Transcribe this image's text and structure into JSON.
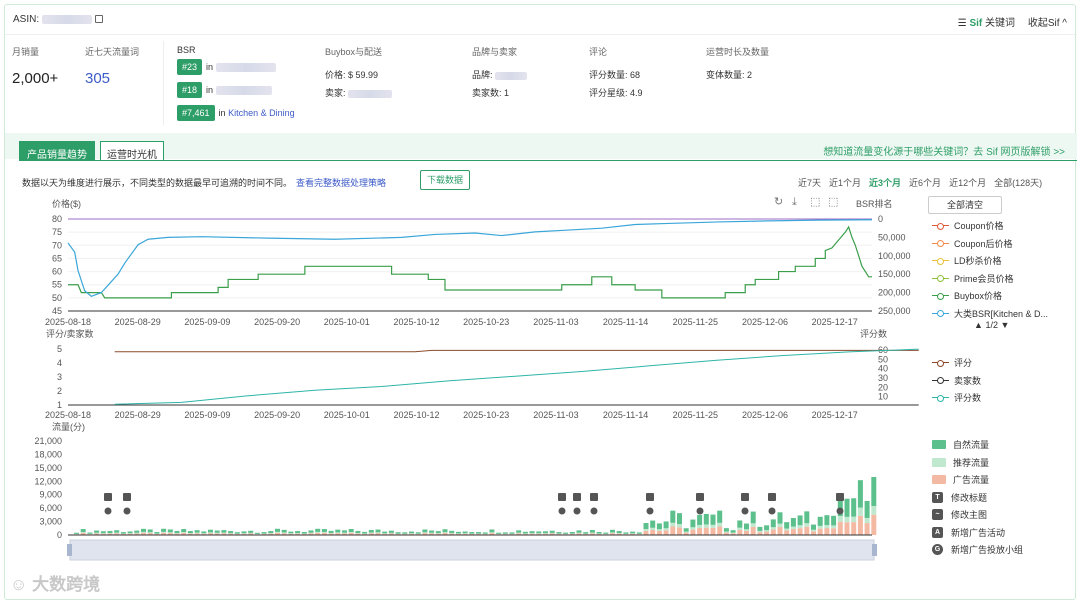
{
  "header": {
    "asin_label": "ASIN:",
    "keywords_label": "关键词",
    "sif_label": "Sif",
    "collapse_label": "收起Sif ^"
  },
  "stats": {
    "monthly_sales_label": "月销量",
    "monthly_sales": "2,000+",
    "traffic_words_label": "近七天流量词",
    "traffic_words": "305"
  },
  "bsr": {
    "label": "BSR",
    "in": "in",
    "ranks": [
      {
        "rank": "#23",
        "category": ""
      },
      {
        "rank": "#18",
        "category": ""
      },
      {
        "rank": "#7,461",
        "category": "Kitchen & Dining"
      }
    ]
  },
  "buybox": {
    "label": "Buybox与配送",
    "price_label": "价格:",
    "price": "$ 59.99",
    "seller_label": "卖家:"
  },
  "brand": {
    "label": "品牌与卖家",
    "brand_label": "品牌:",
    "seller_count_label": "卖家数:",
    "seller_count": "1"
  },
  "reviews": {
    "label": "评论",
    "count_label": "评分数量:",
    "count": "68",
    "rating_label": "评分星级:",
    "rating": "4.9"
  },
  "ops": {
    "label": "运营时长及数量",
    "variants_label": "变体数量:",
    "variants": "2"
  },
  "tabs": {
    "tab1": "产品销量趋势",
    "tab2": "运营时光机",
    "unlock": "想知道流量变化源于哪些关键词？去 Sif 网页版解锁 >>"
  },
  "note": {
    "text": "数据以天为维度进行展示，不同类型的数据最早可追溯的时间不同。",
    "link": "查看完整数据处理策略",
    "download": "下载数据"
  },
  "ranges": [
    "近7天",
    "近1个月",
    "近3个月",
    "近6个月",
    "近12个月",
    "全部(128天)"
  ],
  "active_range": "近3个月",
  "clear_all": "全部清空",
  "legend1": [
    {
      "label": "Coupon价格",
      "color": "#e05a3a"
    },
    {
      "label": "Coupon后价格",
      "color": "#f08a4b"
    },
    {
      "label": "LD秒杀价格",
      "color": "#e8c13a"
    },
    {
      "label": "Prime会员价格",
      "color": "#8fc13a"
    },
    {
      "label": "Buybox价格",
      "color": "#3a9e4a"
    },
    {
      "label": "大类BSR[Kitchen & D...",
      "color": "#3aa6d9"
    }
  ],
  "pager": "1/2",
  "legend2": [
    {
      "label": "评分",
      "color": "#8b4a2b"
    },
    {
      "label": "卖家数",
      "color": "#333333"
    },
    {
      "label": "评分数",
      "color": "#2eb5a8"
    }
  ],
  "legend3": [
    {
      "label": "自然流量",
      "color": "#5cc08c",
      "kind": "sq"
    },
    {
      "label": "推荐流量",
      "color": "#bfe8cf",
      "kind": "sq"
    },
    {
      "label": "广告流量",
      "color": "#f4b9a3",
      "kind": "sq"
    },
    {
      "label": "修改标题",
      "kind": "ic",
      "glyph": "T"
    },
    {
      "label": "修改主图",
      "kind": "ic",
      "glyph": "~"
    },
    {
      "label": "新增广告活动",
      "kind": "ic",
      "glyph": "A"
    },
    {
      "label": "新增广告投放小组",
      "kind": "ic",
      "glyph": "G"
    }
  ],
  "chart_data": [
    {
      "type": "line",
      "title": "",
      "ylabel": "价格($)",
      "y2label": "BSR排名",
      "x": [
        "2025-08-18",
        "2025-08-29",
        "2025-09-09",
        "2025-09-20",
        "2025-10-01",
        "2025-10-12",
        "2025-10-23",
        "2025-11-03",
        "2025-11-14",
        "2025-11-25",
        "2025-12-06",
        "2025-12-17"
      ],
      "yticks": [
        80,
        75,
        70,
        65,
        60,
        55,
        50,
        45
      ],
      "ylim": [
        45,
        80
      ],
      "y2ticks": [
        "0",
        "50,000",
        "100,000",
        "150,000",
        "200,000",
        "250,000"
      ],
      "y2lim": [
        0,
        250000
      ],
      "series": [
        {
          "name": "Buybox价格",
          "axis": "left",
          "values": [
            [
              0,
              55
            ],
            [
              3,
              55
            ],
            [
              4,
              52
            ],
            [
              10,
              52
            ],
            [
              11,
              50
            ],
            [
              31,
              50
            ],
            [
              31,
              52
            ],
            [
              45,
              52
            ],
            [
              45,
              54
            ],
            [
              48,
              54
            ],
            [
              48,
              57
            ],
            [
              57,
              57
            ],
            [
              57,
              59
            ],
            [
              71,
              59
            ],
            [
              71,
              62
            ],
            [
              97,
              62
            ],
            [
              97,
              59
            ],
            [
              108,
              59
            ],
            [
              108,
              57
            ],
            [
              113,
              57
            ],
            [
              113,
              53
            ],
            [
              148,
              53
            ],
            [
              148,
              55
            ],
            [
              157,
              55
            ],
            [
              157,
              58
            ],
            [
              163,
              58
            ],
            [
              163,
              55
            ],
            [
              170,
              55
            ],
            [
              170,
              53
            ],
            [
              178,
              53
            ],
            [
              178,
              50
            ],
            [
              197,
              50
            ],
            [
              197,
              52
            ],
            [
              203,
              52
            ],
            [
              203,
              55
            ],
            [
              206,
              55
            ],
            [
              206,
              57
            ],
            [
              213,
              57
            ],
            [
              213,
              60
            ],
            [
              218,
              60
            ],
            [
              218,
              62
            ],
            [
              224,
              62
            ],
            [
              224,
              65
            ],
            [
              227,
              65
            ],
            [
              227,
              68
            ],
            [
              229,
              69
            ],
            [
              231,
              72
            ],
            [
              233,
              75
            ],
            [
              234,
              77
            ],
            [
              235,
              73
            ],
            [
              236,
              70
            ],
            [
              237,
              66
            ],
            [
              238,
              62
            ],
            [
              240,
              58
            ],
            [
              241,
              58
            ]
          ]
        },
        {
          "name": "大类BSR[Kitchen & Dining]",
          "axis": "right",
          "values": [
            [
              0,
              65000
            ],
            [
              2,
              90000
            ],
            [
              3,
              140000
            ],
            [
              5,
              195000
            ],
            [
              7,
              210000
            ],
            [
              10,
              200000
            ],
            [
              13,
              170000
            ],
            [
              15,
              150000
            ],
            [
              17,
              120000
            ],
            [
              19,
              95000
            ],
            [
              21,
              70000
            ],
            [
              24,
              55000
            ],
            [
              30,
              50000
            ],
            [
              40,
              48000
            ],
            [
              60,
              52000
            ],
            [
              80,
              55000
            ],
            [
              100,
              50000
            ],
            [
              110,
              42000
            ],
            [
              122,
              38000
            ],
            [
              130,
              45000
            ],
            [
              140,
              35000
            ],
            [
              150,
              30000
            ],
            [
              160,
              25000
            ],
            [
              170,
              15000
            ],
            [
              180,
              12000
            ],
            [
              195,
              8000
            ],
            [
              210,
              5000
            ],
            [
              225,
              3000
            ],
            [
              241,
              2000
            ]
          ]
        }
      ]
    },
    {
      "type": "line",
      "ylabel": "评分/卖家数",
      "y2label": "评分数",
      "yticks": [
        5,
        4,
        3,
        2,
        1
      ],
      "ylim": [
        1,
        5
      ],
      "y2ticks": [
        60,
        50,
        40,
        30,
        20,
        10
      ],
      "y2lim": [
        0,
        60
      ],
      "series": [
        {
          "name": "评分",
          "values": [
            [
              0,
              4.8
            ],
            [
              90,
              4.8
            ],
            [
              95,
              4.9
            ],
            [
              241,
              4.9
            ]
          ]
        },
        {
          "name": "卖家数",
          "values": [
            [
              0,
              1
            ],
            [
              241,
              1
            ]
          ]
        },
        {
          "name": "评分数",
          "values": [
            [
              0,
              3
            ],
            [
              20,
              5
            ],
            [
              40,
              12
            ],
            [
              60,
              18
            ],
            [
              80,
              22
            ],
            [
              100,
              28
            ],
            [
              120,
              33
            ],
            [
              140,
              38
            ],
            [
              160,
              44
            ],
            [
              180,
              50
            ],
            [
              200,
              55
            ],
            [
              220,
              59
            ],
            [
              241,
              62
            ]
          ]
        }
      ]
    },
    {
      "type": "bar",
      "ylabel": "流量(分)",
      "yticks": [
        "21,000",
        "18,000",
        "15,000",
        "12,000",
        "9,000",
        "6,000",
        "3,000",
        "0"
      ],
      "ylim": [
        0,
        21000
      ],
      "series": [
        {
          "name": "自然流量"
        },
        {
          "name": "推荐流量"
        },
        {
          "name": "广告流量"
        }
      ]
    }
  ]
}
